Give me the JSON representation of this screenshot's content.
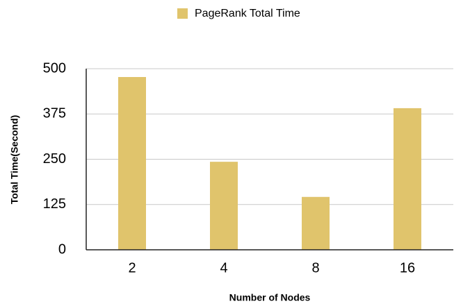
{
  "chart_data": {
    "type": "bar",
    "legend": "PageRank Total Time",
    "x_label": "Number of Nodes",
    "y_label": "Total Time(Second)",
    "categories": [
      "2",
      "4",
      "8",
      "16"
    ],
    "values": [
      477,
      243,
      146,
      391
    ],
    "color": "#e0c46c",
    "ylim": [
      0,
      500
    ],
    "yticks": [
      0,
      125,
      250,
      375,
      500
    ],
    "grid": true,
    "legend_position": "top"
  }
}
